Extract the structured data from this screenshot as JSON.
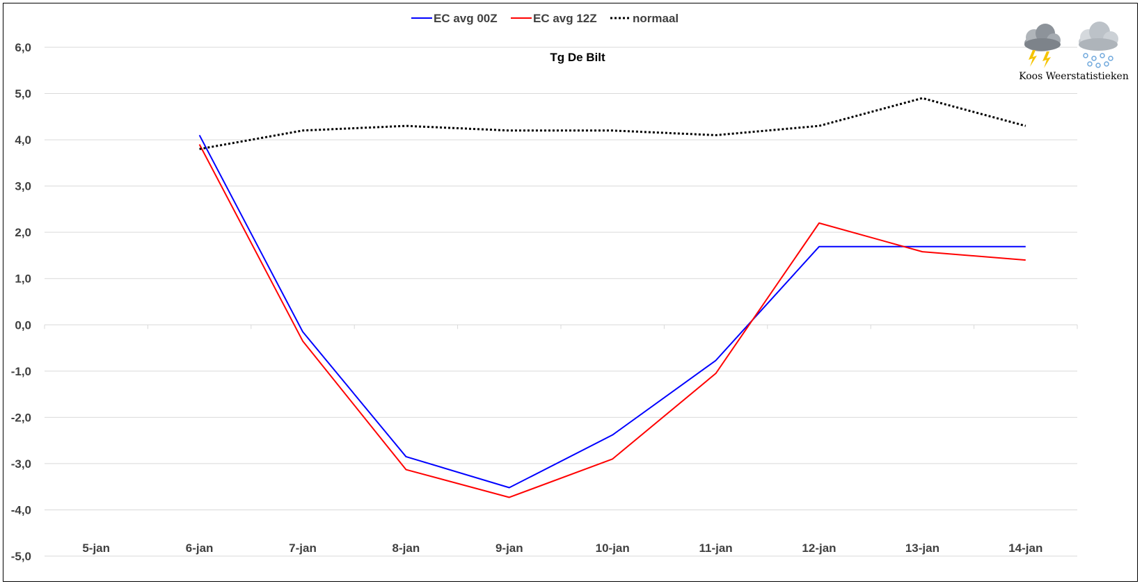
{
  "chart_data": {
    "type": "line",
    "title": "Tg De Bilt",
    "categories": [
      "5-jan",
      "6-jan",
      "7-jan",
      "8-jan",
      "9-jan",
      "10-jan",
      "11-jan",
      "12-jan",
      "13-jan",
      "14-jan"
    ],
    "yticks": [
      "6,0",
      "5,0",
      "4,0",
      "3,0",
      "2,0",
      "1,0",
      "0,0",
      "-1,0",
      "-2,0",
      "-3,0",
      "-4,0",
      "-5,0"
    ],
    "ylim": [
      -5,
      6
    ],
    "grid": true,
    "legend_position": "top",
    "series": [
      {
        "name": "EC avg 00Z",
        "color": "#0000ff",
        "style": "solid",
        "values": [
          null,
          4.1,
          -0.15,
          -2.85,
          -3.52,
          -2.38,
          -0.77,
          1.69,
          1.69,
          1.69
        ]
      },
      {
        "name": "EC avg 12Z",
        "color": "#ff0000",
        "style": "solid",
        "values": [
          null,
          3.9,
          -0.35,
          -3.13,
          -3.73,
          -2.9,
          -1.05,
          2.2,
          1.58,
          1.4
        ]
      },
      {
        "name": "normaal",
        "color": "#000000",
        "style": "dotted",
        "values": [
          null,
          3.8,
          4.2,
          4.3,
          4.2,
          4.2,
          4.1,
          4.3,
          4.9,
          4.3
        ]
      }
    ]
  },
  "watermark": {
    "text": "Koos Weerstatistieken",
    "icons": [
      "thunderstorm-cloud-icon",
      "snow-cloud-icon"
    ]
  }
}
